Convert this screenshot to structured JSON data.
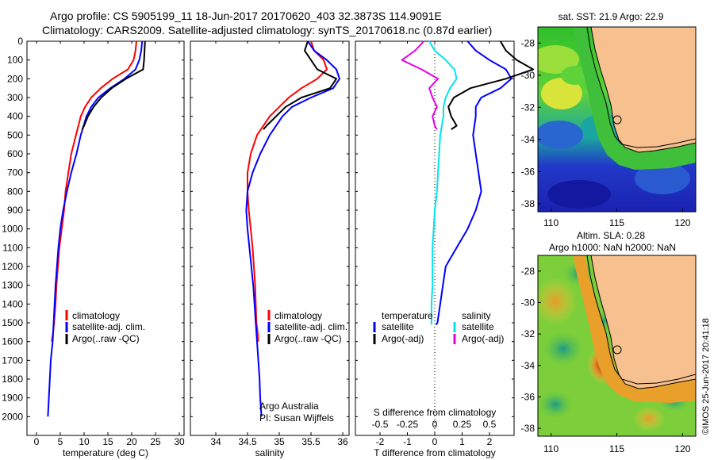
{
  "header": {
    "line1": "Argo profile: CS 5905199_11 18-Jun-2017 20170620_403 32.3873S 114.9091E",
    "line2": "Climatology: CARS2009. Satellite-adjusted climatology: synTS_20170618.nc (0.87d earlier)"
  },
  "side_label": "©IMOS 25-Jun-2017 20:41:18",
  "colors": {
    "climatology": "#ff0000",
    "satellite": "#0000ff",
    "argo": "#000000",
    "sal_satellite": "#00e5ee",
    "sal_argo": "#e600e6",
    "land": "#f7c08f"
  },
  "chart_data": [
    {
      "id": "temperature",
      "type": "line",
      "xlabel": "temperature (deg C)",
      "ylabel": "",
      "xlim": [
        -2,
        31
      ],
      "ylim": [
        2100,
        0
      ],
      "xticks": [
        0,
        5,
        10,
        15,
        20,
        25,
        30
      ],
      "yticks": [
        0,
        100,
        200,
        300,
        400,
        500,
        600,
        700,
        800,
        900,
        1000,
        1100,
        1200,
        1300,
        1400,
        1500,
        1600,
        1700,
        1800,
        1900,
        2000
      ],
      "legend": {
        "position": "bottom-left",
        "entries": [
          "climatology",
          "satellite-adj. clim.",
          "Argo(..raw -QC)"
        ]
      },
      "series": [
        {
          "name": "climatology",
          "color": "#ff0000",
          "x": [
            21.0,
            20.8,
            20.4,
            19.2,
            16.0,
            13.5,
            11.5,
            10.2,
            9.3,
            8.3,
            7.3,
            6.7,
            6.1,
            5.8,
            5.3,
            4.8,
            4.5,
            4.2,
            4.0,
            3.7,
            3.5,
            3.2
          ],
          "y": [
            0,
            50,
            100,
            150,
            200,
            250,
            300,
            350,
            400,
            500,
            600,
            700,
            800,
            900,
            1000,
            1100,
            1200,
            1300,
            1400,
            1500,
            1550,
            1600
          ]
        },
        {
          "name": "satellite-adj. clim.",
          "color": "#0000ff",
          "x": [
            22.2,
            22.0,
            21.6,
            20.8,
            18.5,
            15.5,
            13.0,
            11.5,
            10.5,
            9.3,
            8.4,
            7.3,
            6.4,
            5.6,
            5.0,
            4.6,
            4.3,
            4.0,
            3.8,
            3.6,
            3.4,
            3.0,
            2.8,
            2.6,
            2.5,
            2.4
          ],
          "y": [
            0,
            50,
            100,
            150,
            200,
            250,
            300,
            350,
            400,
            500,
            600,
            700,
            800,
            900,
            1000,
            1100,
            1200,
            1300,
            1400,
            1500,
            1600,
            1700,
            1800,
            1900,
            1950,
            2000
          ]
        },
        {
          "name": "Argo(..raw -QC)",
          "color": "#000000",
          "x": [
            22.8,
            22.7,
            22.6,
            22.4,
            18.8,
            15.8,
            13.6,
            12.0,
            10.8,
            10.0,
            9.6
          ],
          "y": [
            0,
            50,
            100,
            150,
            200,
            250,
            300,
            350,
            400,
            450,
            470
          ]
        }
      ]
    },
    {
      "id": "salinity",
      "type": "line",
      "xlabel": "salinity",
      "ylabel": "",
      "xlim": [
        33.6,
        36.1
      ],
      "ylim": [
        2100,
        0
      ],
      "xticks": [
        34,
        34.5,
        35,
        35.5,
        36
      ],
      "legend": {
        "position": "bottom-left",
        "entries": [
          "climatology",
          "satellite-adj. clim.",
          "Argo(..raw -QC)"
        ]
      },
      "annotation": [
        "Argo Australia",
        "PI: Susan Wijffels"
      ],
      "series": [
        {
          "name": "climatology",
          "color": "#ff0000",
          "x": [
            35.5,
            35.55,
            35.7,
            35.75,
            35.6,
            35.35,
            35.15,
            35.0,
            34.85,
            34.65,
            34.55,
            34.5,
            34.5,
            34.52,
            34.55,
            34.58,
            34.6,
            34.62,
            34.63,
            34.64,
            34.66,
            34.67
          ],
          "y": [
            0,
            50,
            100,
            150,
            200,
            250,
            300,
            350,
            400,
            500,
            600,
            700,
            800,
            900,
            1000,
            1100,
            1200,
            1300,
            1400,
            1500,
            1550,
            1600
          ]
        },
        {
          "name": "satellite-adj. clim.",
          "color": "#0000ff",
          "x": [
            35.45,
            35.55,
            35.75,
            35.9,
            35.95,
            35.85,
            35.5,
            35.2,
            35.05,
            34.85,
            34.7,
            34.58,
            34.5,
            34.48,
            34.5,
            34.53,
            34.56,
            34.59,
            34.61,
            34.63,
            34.65,
            34.67,
            34.69,
            34.7,
            34.71,
            34.72
          ],
          "y": [
            0,
            50,
            100,
            150,
            200,
            250,
            300,
            350,
            400,
            500,
            600,
            700,
            800,
            900,
            1000,
            1100,
            1200,
            1300,
            1400,
            1500,
            1600,
            1700,
            1800,
            1900,
            1950,
            2000
          ]
        },
        {
          "name": "Argo(..raw -QC)",
          "color": "#000000",
          "x": [
            35.45,
            35.4,
            35.5,
            35.6,
            35.9,
            35.8,
            35.35,
            35.1,
            34.95,
            34.8,
            34.75
          ],
          "y": [
            0,
            50,
            100,
            150,
            200,
            250,
            300,
            350,
            400,
            450,
            470
          ]
        }
      ]
    },
    {
      "id": "difference",
      "type": "line",
      "xlabel": "T difference from climatology",
      "x2label": "S difference from climatology",
      "xlim": [
        -2.9,
        2.9
      ],
      "x2lim": [
        -0.725,
        0.725
      ],
      "ylim": [
        2100,
        0
      ],
      "xticks": [
        -2,
        -1,
        0,
        1,
        2
      ],
      "x2ticks": [
        -0.5,
        -0.25,
        0,
        0.25,
        0.5
      ],
      "x2ticklabels": [
        "-0.5",
        "-0.25",
        "0",
        "0.25",
        "0.5"
      ],
      "legend": {
        "position": "bottom",
        "entries": [
          "temperature",
          "satellite",
          "Argo(-adj)",
          "salinity",
          "satellite",
          "Argo(-adj)"
        ]
      },
      "series": [
        {
          "name": "satellite",
          "group": "temperature",
          "axis": "T",
          "color": "#0000ff",
          "x": [
            1.2,
            1.5,
            2.0,
            2.6,
            2.8,
            2.4,
            1.7,
            1.5,
            1.5,
            1.4,
            1.5,
            1.6,
            1.7,
            1.5,
            1.2,
            0.8,
            0.4,
            0.3,
            0.2,
            0.1,
            0.05
          ],
          "y": [
            0,
            50,
            100,
            150,
            200,
            250,
            300,
            350,
            400,
            500,
            600,
            700,
            800,
            900,
            1000,
            1100,
            1200,
            1300,
            1400,
            1500,
            1510
          ]
        },
        {
          "name": "Argo(-adj)",
          "group": "temperature",
          "axis": "T",
          "color": "#000000",
          "x": [
            2.4,
            2.6,
            3.0,
            3.6,
            2.6,
            1.3,
            0.7,
            0.5,
            0.6,
            0.8,
            0.6
          ],
          "y": [
            0,
            50,
            100,
            150,
            200,
            250,
            300,
            350,
            400,
            450,
            470
          ]
        },
        {
          "name": "satellite",
          "group": "salinity",
          "axis": "S",
          "color": "#00e5ee",
          "x": [
            -0.05,
            0.0,
            0.1,
            0.18,
            0.2,
            0.14,
            0.1,
            0.08,
            0.08,
            0.05,
            0.04,
            0.03,
            0.02,
            0.0,
            -0.01,
            -0.02,
            -0.02,
            -0.02,
            -0.03,
            -0.03,
            -0.03
          ],
          "y": [
            0,
            50,
            100,
            150,
            200,
            250,
            300,
            350,
            400,
            500,
            600,
            700,
            800,
            900,
            1000,
            1100,
            1200,
            1300,
            1400,
            1500,
            1510
          ]
        },
        {
          "name": "Argo(-adj)",
          "group": "salinity",
          "axis": "S",
          "color": "#e600e6",
          "x": [
            -0.1,
            -0.18,
            -0.3,
            -0.12,
            0.03,
            -0.05,
            -0.02,
            0.02,
            -0.02,
            0.0,
            0.02
          ],
          "y": [
            0,
            50,
            100,
            150,
            200,
            250,
            300,
            350,
            400,
            450,
            470
          ]
        }
      ]
    },
    {
      "id": "sst_map",
      "type": "heatmap",
      "title": "sat. SST: 21.9 Argo: 22.9",
      "xlim": [
        109,
        121
      ],
      "ylim": [
        -38.5,
        -27
      ],
      "xticks": [
        110,
        115,
        120
      ],
      "yticks": [
        -28,
        -30,
        -32,
        -34,
        -36,
        -38
      ],
      "argo_position": [
        114.91,
        -32.39
      ]
    },
    {
      "id": "sla_map",
      "type": "heatmap",
      "title": "Altim. SLA: 0.28",
      "subtitle": "Argo h1000: NaN h2000: NaN",
      "xlim": [
        109,
        121
      ],
      "ylim": [
        -38.5,
        -27
      ],
      "xticks": [
        110,
        115,
        120
      ],
      "yticks": [
        -28,
        -30,
        -32,
        -34,
        -36,
        -38
      ],
      "argo_position": [
        114.91,
        -32.39
      ]
    }
  ]
}
